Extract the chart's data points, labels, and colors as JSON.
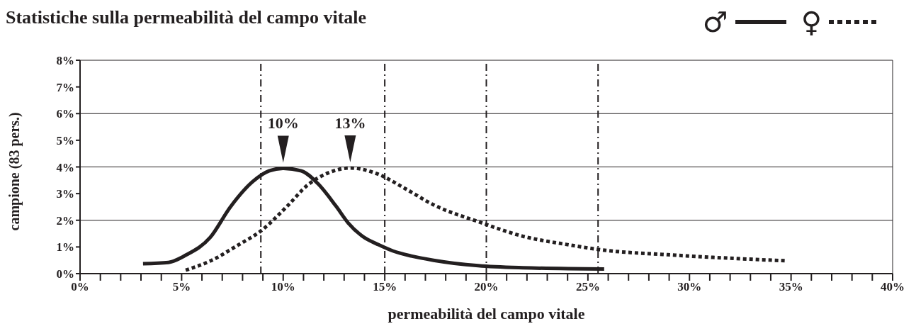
{
  "chart_data": {
    "type": "line",
    "title": "Statistiche sulla permeabilità del campo vitale",
    "xlabel": "permeabilità del campo vitale",
    "ylabel": "campione (83 pers.)",
    "legend": "top right",
    "series": [
      {
        "name": "♂",
        "color": "#231f20",
        "line_style": "solid",
        "x": [
          3.1,
          4.35,
          5.2,
          6.4,
          7.4,
          8.5,
          9.3,
          10,
          10.9,
          11.7,
          12.6,
          13.2,
          13.9,
          14.7,
          15.4,
          16.3,
          17.4,
          19.6,
          21.8,
          25.8
        ],
        "values": [
          0.37,
          0.42,
          0.69,
          1.35,
          2.5,
          3.45,
          3.85,
          3.95,
          3.85,
          3.38,
          2.53,
          1.9,
          1.4,
          1.08,
          0.85,
          0.66,
          0.5,
          0.3,
          0.22,
          0.17
        ]
      },
      {
        "name": "♀",
        "color": "#231f20",
        "line_style": "dotted",
        "x": [
          5.2,
          6.4,
          7.8,
          8.9,
          10.2,
          11.2,
          12.2,
          13.3,
          14.6,
          16,
          17.4,
          19.6,
          21.8,
          23.9,
          25.9,
          28.7,
          31.4,
          34.8
        ],
        "values": [
          0.13,
          0.47,
          1.08,
          1.6,
          2.53,
          3.32,
          3.77,
          3.96,
          3.75,
          3.19,
          2.58,
          1.95,
          1.4,
          1.1,
          0.87,
          0.72,
          0.6,
          0.48
        ]
      }
    ],
    "xlim": [
      0,
      40
    ],
    "ylim": [
      0,
      8
    ],
    "xticks": [
      {
        "value": 0,
        "label": "0%"
      },
      {
        "value": 1,
        "label": null
      },
      {
        "value": 2,
        "label": null
      },
      {
        "value": 3,
        "label": null
      },
      {
        "value": 4,
        "label": null
      },
      {
        "value": 5,
        "label": "5%"
      },
      {
        "value": 6,
        "label": null
      },
      {
        "value": 7,
        "label": null
      },
      {
        "value": 8,
        "label": null
      },
      {
        "value": 9,
        "label": null
      },
      {
        "value": 10,
        "label": "10%"
      },
      {
        "value": 11,
        "label": null
      },
      {
        "value": 12,
        "label": null
      },
      {
        "value": 13,
        "label": null
      },
      {
        "value": 14,
        "label": null
      },
      {
        "value": 15,
        "label": "15%"
      },
      {
        "value": 16,
        "label": null
      },
      {
        "value": 17,
        "label": null
      },
      {
        "value": 18,
        "label": null
      },
      {
        "value": 19,
        "label": null
      },
      {
        "value": 20,
        "label": "20%"
      },
      {
        "value": 21,
        "label": null
      },
      {
        "value": 22,
        "label": null
      },
      {
        "value": 23,
        "label": null
      },
      {
        "value": 24,
        "label": null
      },
      {
        "value": 25,
        "label": "25%"
      },
      {
        "value": 26,
        "label": null
      },
      {
        "value": 27,
        "label": null
      },
      {
        "value": 28,
        "label": null
      },
      {
        "value": 29,
        "label": null
      },
      {
        "value": 30,
        "label": "30%"
      },
      {
        "value": 31,
        "label": null
      },
      {
        "value": 32,
        "label": null
      },
      {
        "value": 33,
        "label": null
      },
      {
        "value": 34,
        "label": null
      },
      {
        "value": 35,
        "label": "35%"
      },
      {
        "value": 36,
        "label": null
      },
      {
        "value": 37,
        "label": null
      },
      {
        "value": 38,
        "label": null
      },
      {
        "value": 39,
        "label": null
      },
      {
        "value": 40,
        "label": "40%"
      }
    ],
    "yticks": [
      {
        "value": 0,
        "label": "0%"
      },
      {
        "value": 1,
        "label": "1%"
      },
      {
        "value": 2,
        "label": "2%"
      },
      {
        "value": 3,
        "label": "3%"
      },
      {
        "value": 4,
        "label": "4%"
      },
      {
        "value": 5,
        "label": "5%"
      },
      {
        "value": 6,
        "label": "6%"
      },
      {
        "value": 7,
        "label": "7%"
      },
      {
        "value": 8,
        "label": "8%"
      }
    ],
    "ref_lines": [
      {
        "axis": "y",
        "value": 2,
        "color": "#231f20",
        "line_style": "solid"
      },
      {
        "axis": "y",
        "value": 4,
        "color": "#231f20",
        "line_style": "solid"
      },
      {
        "axis": "y",
        "value": 6,
        "color": "#231f20",
        "line_style": "solid"
      },
      {
        "axis": "x",
        "value": 8.9,
        "color": "#231f20",
        "line_style": "dashed"
      },
      {
        "axis": "x",
        "value": 15,
        "color": "#231f20",
        "line_style": "dashed"
      },
      {
        "axis": "x",
        "value": 20,
        "color": "#231f20",
        "line_style": "dashed"
      },
      {
        "axis": "x",
        "value": 25.5,
        "color": "#231f20",
        "line_style": "dashed"
      }
    ],
    "annotations": [
      {
        "text": "10%",
        "x": 10,
        "y": 3.95
      },
      {
        "text": "13%",
        "x": 13.3,
        "y": 3.96
      }
    ]
  }
}
